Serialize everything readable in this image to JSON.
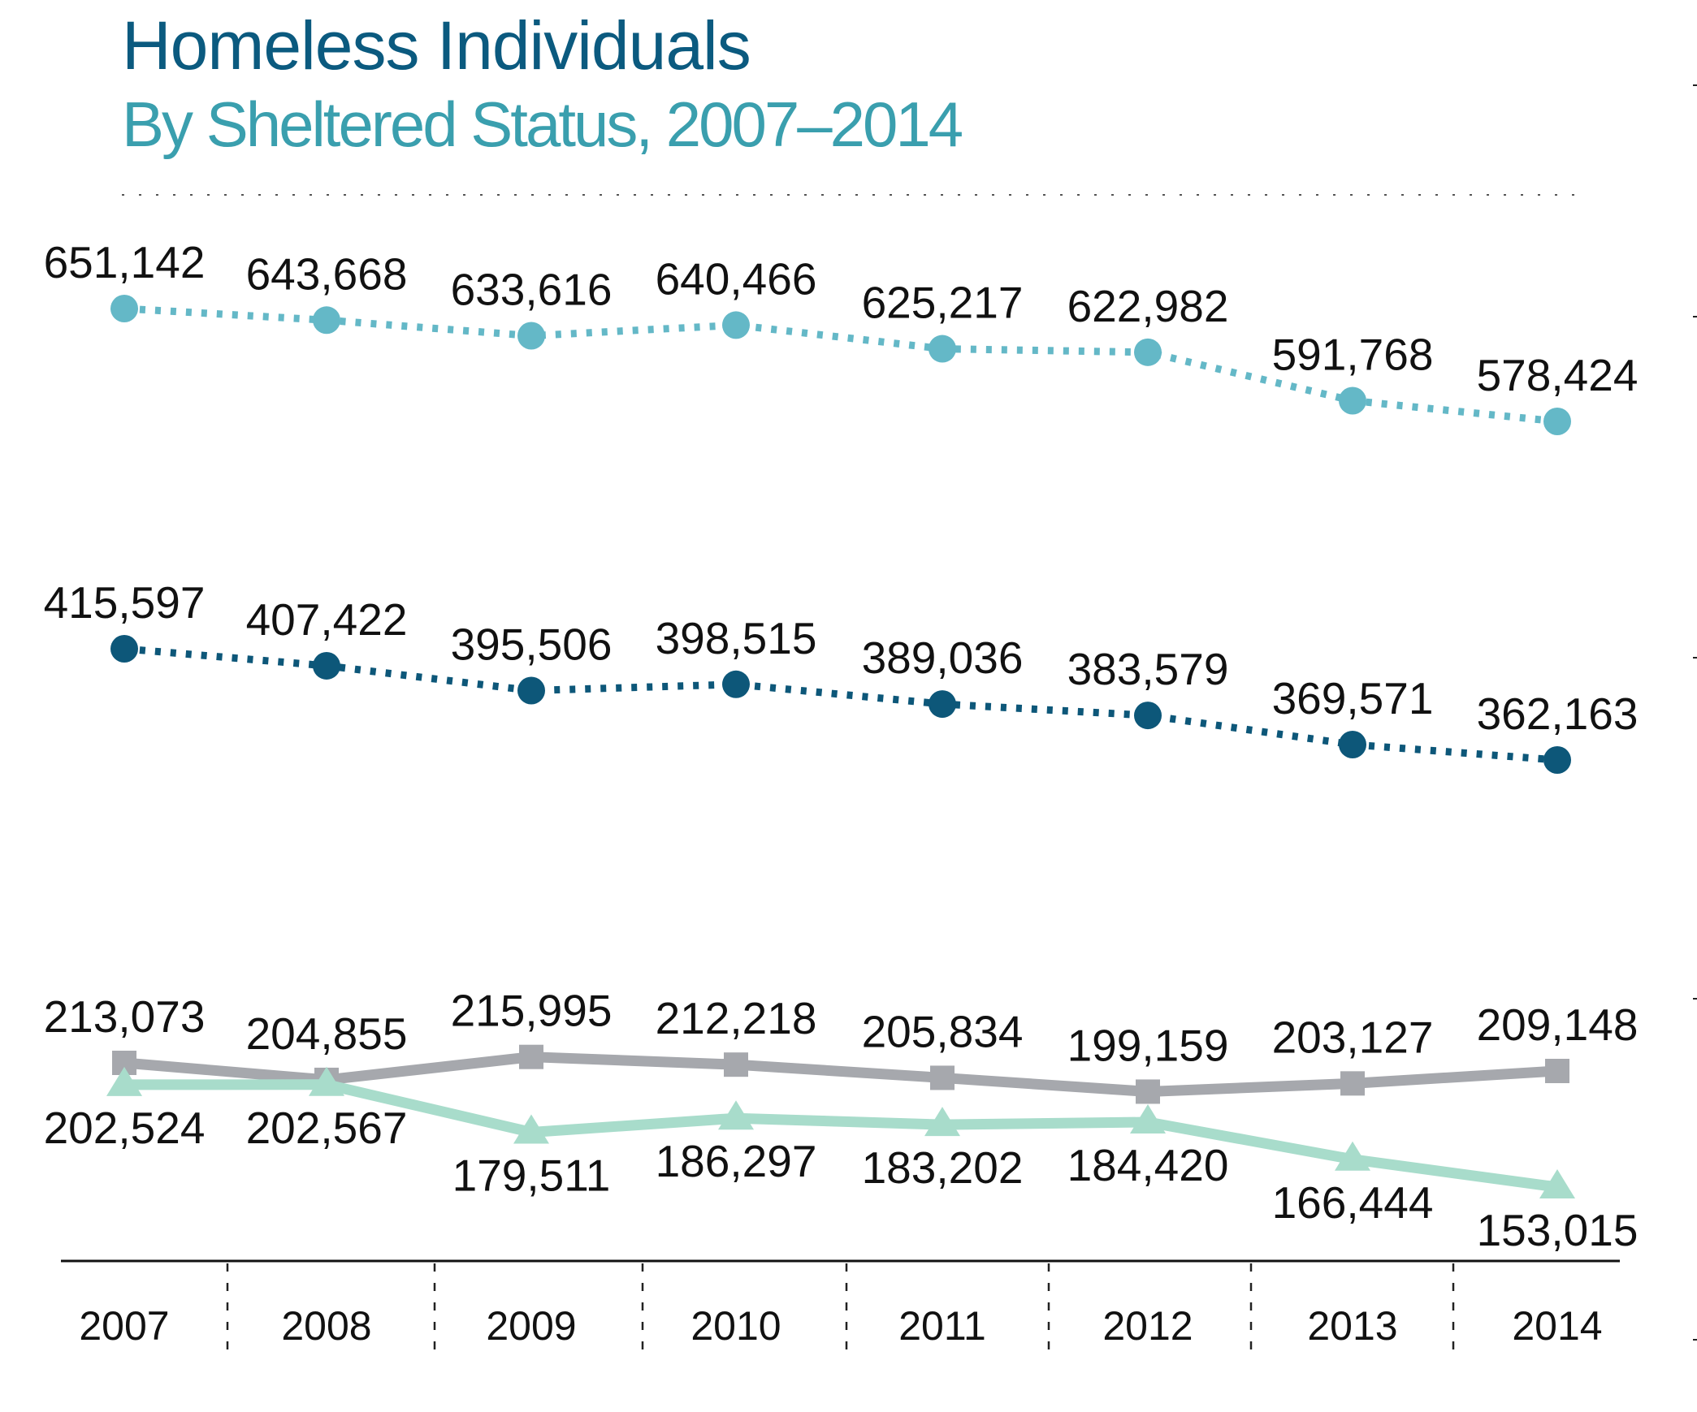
{
  "chart_data": {
    "type": "line",
    "title": "Homeless Individuals",
    "subtitle": "By Sheltered Status, 2007–2014",
    "xlabel": "",
    "ylabel": "",
    "categories": [
      "2007",
      "2008",
      "2009",
      "2010",
      "2011",
      "2012",
      "2013",
      "2014"
    ],
    "grid": false,
    "legend": "none",
    "series": [
      {
        "color": "#64b8c7",
        "marker": "circle",
        "line_style": "dotted",
        "label_position": "above",
        "values": [
          651142,
          643668,
          633616,
          640466,
          625217,
          622982,
          591768,
          578424
        ],
        "labels": [
          "651,142",
          "643,668",
          "633,616",
          "640,466",
          "625,217",
          "622,982",
          "591,768",
          "578,424"
        ]
      },
      {
        "color": "#0d5779",
        "marker": "circle",
        "line_style": "dotted",
        "label_position": "above",
        "values": [
          415597,
          407422,
          395506,
          398515,
          389036,
          383579,
          369571,
          362163
        ],
        "labels": [
          "415,597",
          "407,422",
          "395,506",
          "398,515",
          "389,036",
          "383,579",
          "369,571",
          "362,163"
        ]
      },
      {
        "color": "#a6a8ad",
        "marker": "square",
        "line_style": "solid",
        "label_position": "above",
        "values": [
          213073,
          204855,
          215995,
          212218,
          205834,
          199159,
          203127,
          209148
        ],
        "labels": [
          "213,073",
          "204,855",
          "215,995",
          "212,218",
          "205,834",
          "199,159",
          "203,127",
          "209,148"
        ]
      },
      {
        "color": "#a8dccb",
        "marker": "triangle",
        "line_style": "solid",
        "label_position": "below",
        "values": [
          202524,
          202567,
          179511,
          186297,
          183202,
          184420,
          166444,
          153015
        ],
        "labels": [
          "202,524",
          "202,567",
          "179,511",
          "186,297",
          "183,202",
          "184,420",
          "166,444",
          "153,015"
        ]
      }
    ]
  }
}
